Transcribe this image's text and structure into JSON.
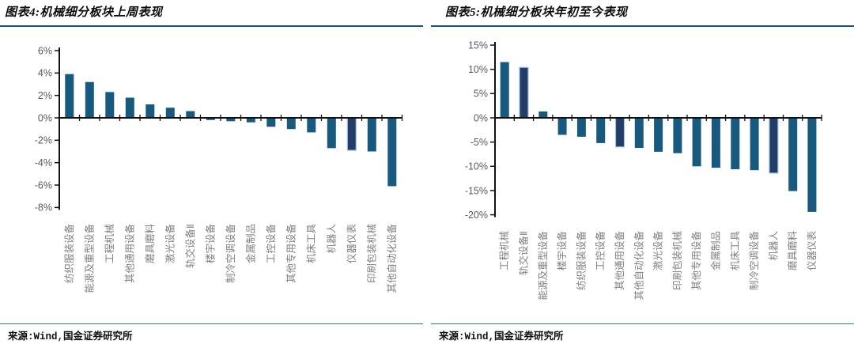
{
  "colors": {
    "bar_teal": "#17597f",
    "bar_highlight_navy": "#243d66",
    "bar_highlight_stroke": "#9dc3e6",
    "axis_black": "#111111",
    "title_underline_blue": "#1f4e79",
    "source_line_blue": "#2e75b6",
    "ytick_text_gray": "#595959",
    "xtick_text_gray": "#7f7f7f"
  },
  "chart_data": [
    {
      "type": "bar",
      "title": "图表4:机械细分板块上周表现",
      "source": "来源:Wind,国金证券研究所",
      "unit": "%",
      "xlabel": "",
      "ylabel": "",
      "grid": false,
      "legend": false,
      "ylim": [
        -8,
        6
      ],
      "ytick_step": 2,
      "ytick_labels": [
        "6%",
        "4%",
        "2%",
        "0%",
        "-2%",
        "-4%",
        "-6%",
        "-8%"
      ],
      "categories": [
        "纺织服装设备",
        "能源及重型设备",
        "工程机械",
        "其他通用设备",
        "磨具磨料",
        "激光设备",
        "轨交设备Ⅱ",
        "楼宇设备",
        "制冷空调设备",
        "金属制品",
        "工控设备",
        "其他专用设备",
        "机床工具",
        "机器人",
        "仪器仪表",
        "印刷包装机械",
        "其他自动化设备"
      ],
      "values": [
        3.9,
        3.2,
        2.3,
        1.8,
        1.2,
        0.9,
        0.6,
        -0.2,
        -0.3,
        -0.4,
        -0.8,
        -1.0,
        -1.3,
        -2.7,
        -2.9,
        -3.0,
        -6.1
      ],
      "highlight_indices": [
        14
      ]
    },
    {
      "type": "bar",
      "title": "图表5:机械细分板块年初至今表现",
      "source": "来源:Wind,国金证券研究所",
      "unit": "%",
      "xlabel": "",
      "ylabel": "",
      "grid": false,
      "legend": false,
      "ylim": [
        -20,
        15
      ],
      "ytick_step": 5,
      "ytick_labels": [
        "15%",
        "10%",
        "5%",
        "0%",
        "-5%",
        "-10%",
        "-15%",
        "-20%"
      ],
      "categories": [
        "工程机械",
        "轨交设备Ⅱ",
        "能源及重型设备",
        "楼宇设备",
        "纺织服装设备",
        "工控设备",
        "其他通用设备",
        "其他自动化设备",
        "激光设备",
        "印刷包装机械",
        "其他专用设备",
        "金属制品",
        "机床工具",
        "制冷空调设备",
        "机器人",
        "磨具磨料",
        "仪器仪表"
      ],
      "values": [
        11.5,
        10.4,
        1.3,
        -3.5,
        -3.9,
        -5.2,
        -6.0,
        -6.2,
        -7.0,
        -7.3,
        -10.0,
        -10.3,
        -10.6,
        -10.8,
        -11.4,
        -15.1,
        -19.4
      ],
      "highlight_indices": [
        1,
        6,
        14
      ]
    }
  ]
}
